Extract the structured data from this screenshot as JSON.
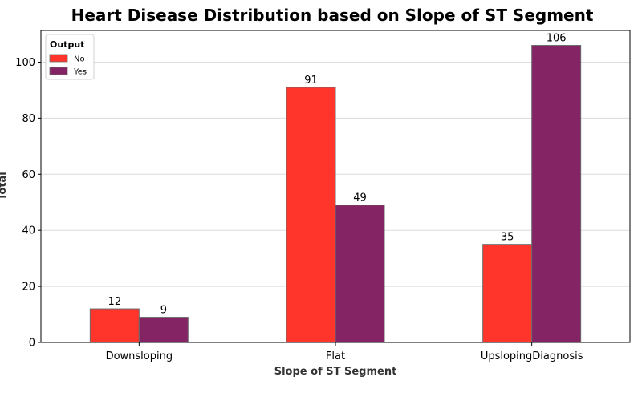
{
  "chart_data": {
    "type": "bar",
    "title": "Heart Disease Distribution based on Slope of ST Segment",
    "xlabel": "Slope of ST Segment",
    "ylabel": "Total",
    "categories": [
      "Downsloping",
      "Flat",
      "UpslopingDiagnosis"
    ],
    "series": [
      {
        "name": "No",
        "values": [
          12,
          91,
          35
        ],
        "color": "#ff342a"
      },
      {
        "name": "Yes",
        "values": [
          9,
          49,
          106
        ],
        "color": "#852465"
      }
    ],
    "ylim": [
      0,
      111.3
    ],
    "yticks": [
      0,
      20,
      40,
      60,
      80,
      100
    ],
    "grid": "horizontal",
    "legend": {
      "title": "Output",
      "position": "top-left"
    },
    "bar_edge_color": "#6b6b6b"
  }
}
